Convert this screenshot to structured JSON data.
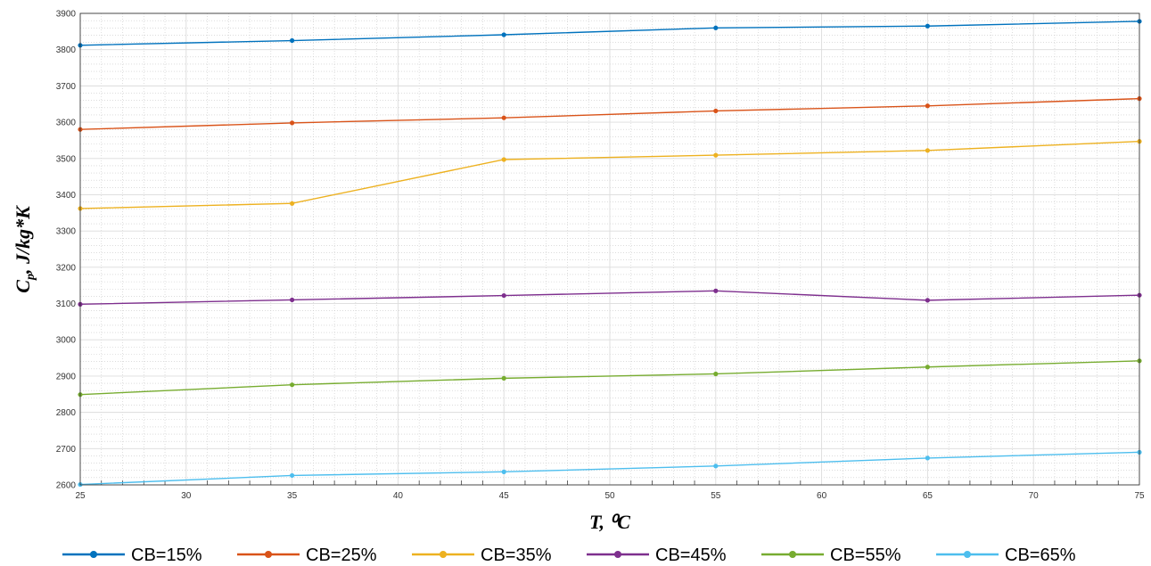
{
  "chart_data": {
    "type": "line",
    "xlabel": "T, ⁰C",
    "ylabel": "C",
    "ylabel_sub": "p",
    "ylabel_unit": ", J/kg*K",
    "xlim": [
      25,
      75
    ],
    "ylim": [
      2600,
      3900
    ],
    "xticks": [
      25,
      30,
      35,
      40,
      45,
      50,
      55,
      60,
      65,
      70,
      75
    ],
    "yticks": [
      2600,
      2700,
      2800,
      2900,
      3000,
      3100,
      3200,
      3300,
      3400,
      3500,
      3600,
      3700,
      3800,
      3900
    ],
    "grid": true,
    "legend_position": "bottom",
    "x": [
      25,
      35,
      45,
      55,
      65,
      75
    ],
    "series": [
      {
        "name": "CB=15%",
        "color": "#0072BD",
        "values": [
          3812,
          3825,
          3841,
          3860,
          3865,
          3878
        ]
      },
      {
        "name": "CB=25%",
        "color": "#D95319",
        "values": [
          3580,
          3598,
          3612,
          3631,
          3645,
          3665
        ]
      },
      {
        "name": "CB=35%",
        "color": "#EDB120",
        "values": [
          3362,
          3376,
          3497,
          3509,
          3522,
          3547
        ]
      },
      {
        "name": "CB=45%",
        "color": "#7E2F8E",
        "values": [
          3098,
          3110,
          3122,
          3135,
          3109,
          3123
        ]
      },
      {
        "name": "CB=55%",
        "color": "#77AC30",
        "values": [
          2849,
          2876,
          2894,
          2906,
          2925,
          2942
        ]
      },
      {
        "name": "CB=65%",
        "color": "#4DBEEE",
        "values": [
          2601,
          2626,
          2636,
          2652,
          2674,
          2690
        ]
      }
    ]
  }
}
